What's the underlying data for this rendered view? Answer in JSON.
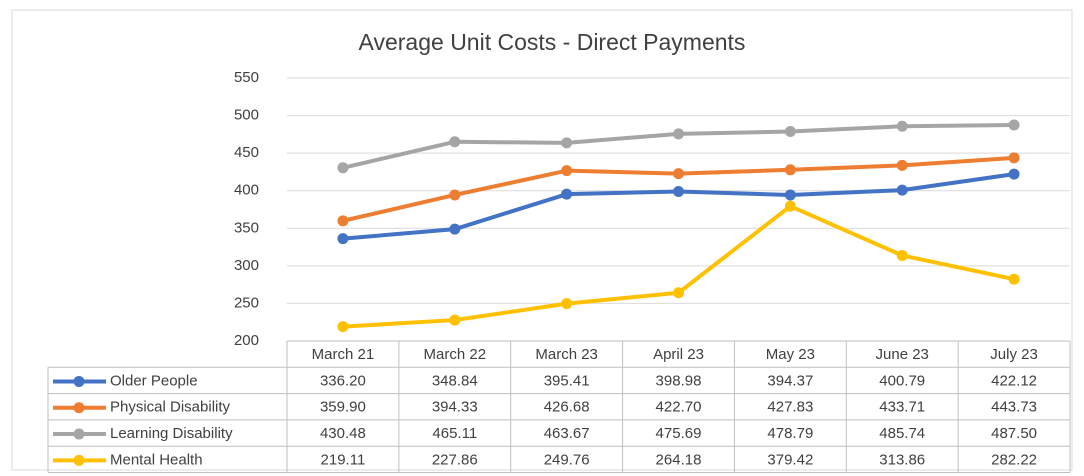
{
  "chart_data": {
    "type": "line",
    "title": "Average Unit Costs - Direct Payments",
    "categories": [
      "March 21",
      "March 22",
      "March 23",
      "April 23",
      "May 23",
      "June 23",
      "July 23"
    ],
    "series": [
      {
        "name": "Older People",
        "color": "#4472c4",
        "values": [
          336.2,
          348.84,
          395.41,
          398.98,
          394.37,
          400.79,
          422.12
        ],
        "value_labels": [
          "336.20",
          "348.84",
          "395.41",
          "398.98",
          "394.37",
          "400.79",
          "422.12"
        ]
      },
      {
        "name": "Physical Disability",
        "color": "#ed7d31",
        "values": [
          359.9,
          394.33,
          426.68,
          422.7,
          427.83,
          433.71,
          443.73
        ],
        "value_labels": [
          "359.90",
          "394.33",
          "426.68",
          "422.70",
          "427.83",
          "433.71",
          "443.73"
        ]
      },
      {
        "name": "Learning Disability",
        "color": "#a5a5a5",
        "values": [
          430.48,
          465.11,
          463.67,
          475.69,
          478.79,
          485.74,
          487.5
        ],
        "value_labels": [
          "430.48",
          "465.11",
          "463.67",
          "475.69",
          "478.79",
          "485.74",
          "487.50"
        ]
      },
      {
        "name": "Mental Health",
        "color": "#ffc000",
        "values": [
          219.11,
          227.86,
          249.76,
          264.18,
          379.42,
          313.86,
          282.22
        ],
        "value_labels": [
          "219.11",
          "227.86",
          "249.76",
          "264.18",
          "379.42",
          "313.86",
          "282.22"
        ]
      }
    ],
    "ylim": [
      200,
      550
    ],
    "yticks": [
      200,
      250,
      300,
      350,
      400,
      450,
      500,
      550
    ],
    "grid": true
  }
}
